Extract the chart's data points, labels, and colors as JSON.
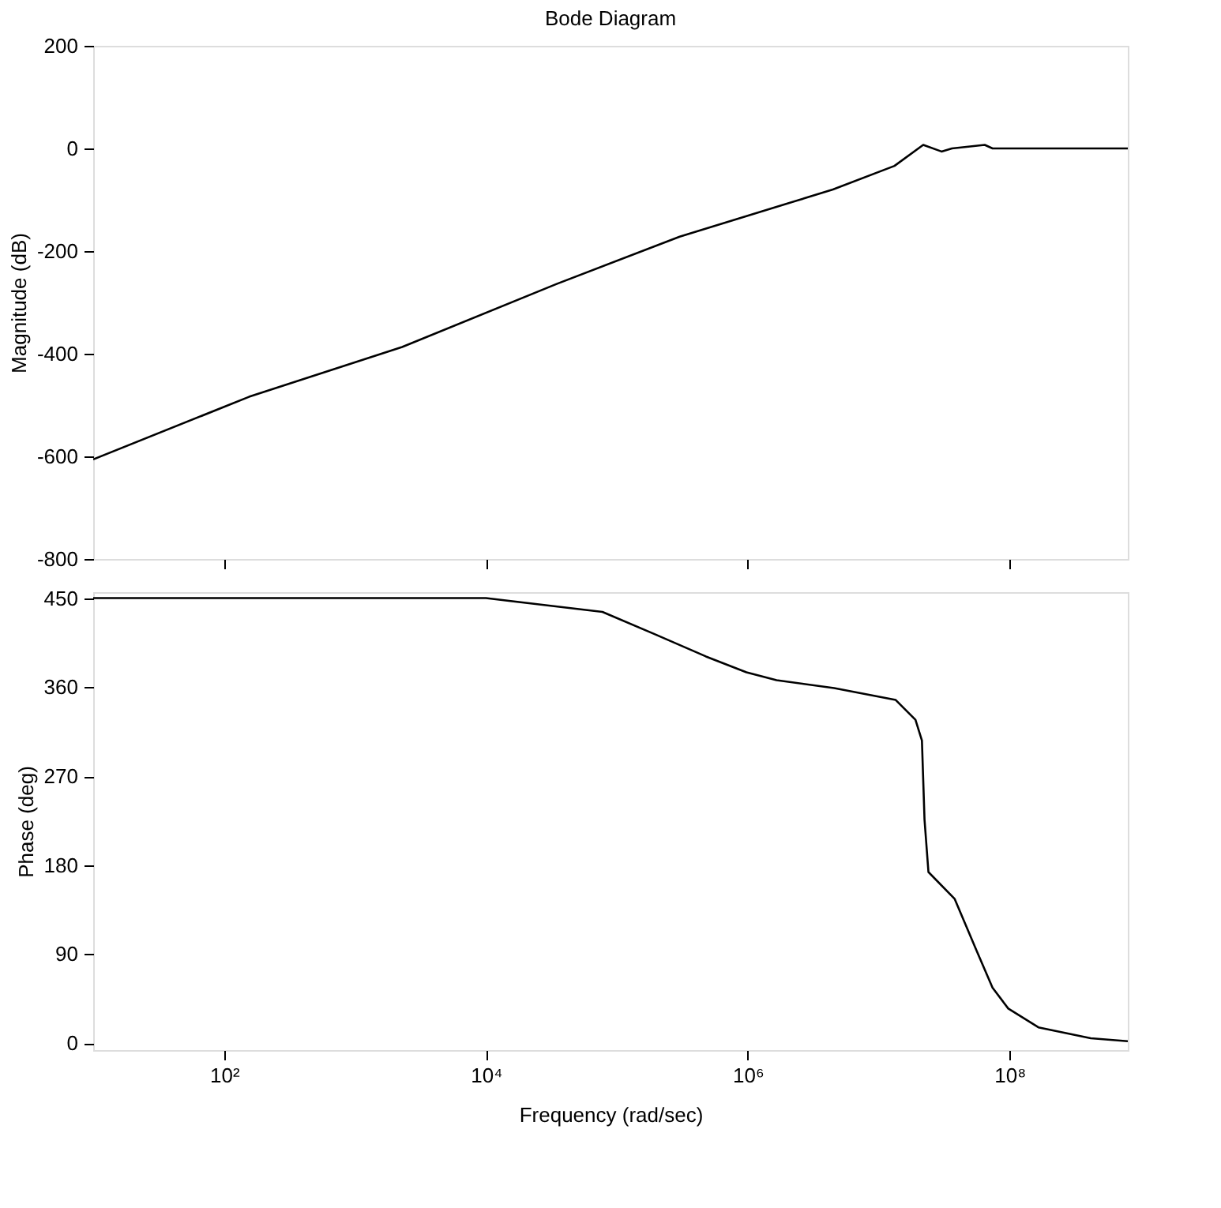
{
  "chart_data": [
    {
      "type": "line",
      "title": "Bode Diagram",
      "ylabel": "Magnitude (dB)",
      "log": "x",
      "grid": false,
      "tick_labels": "y",
      "xlim": [
        10,
        800000000
      ],
      "xticks": [
        {
          "value": 100,
          "label": null
        },
        {
          "value": 10000,
          "label": null
        },
        {
          "value": 1000000,
          "label": null
        },
        {
          "value": 100000000,
          "label": null
        }
      ],
      "ylim": [
        -800,
        200
      ],
      "yticks": [
        -800,
        -600,
        -400,
        -200,
        0,
        200
      ],
      "series": [
        {
          "color": "#000000",
          "x": [
            10,
            155,
            2290,
            34700,
            302000,
            4470000,
            13200000,
            21900000,
            30200000,
            36300000,
            64600000,
            74100000,
            800000000
          ],
          "values": [
            -606,
            -484,
            -387,
            -264,
            -172,
            -80,
            -34,
            7,
            -6,
            0,
            7,
            0,
            0
          ]
        }
      ]
    },
    {
      "type": "line",
      "ylabel": "Phase (deg)",
      "xlabel": "Frequency  (rad/sec)",
      "log": "x",
      "grid": false,
      "xlim": [
        10,
        800000000
      ],
      "xticks": [
        {
          "value": 100,
          "label": "10²"
        },
        {
          "value": 10000,
          "label": "10⁴"
        },
        {
          "value": 1000000,
          "label": "10⁶"
        },
        {
          "value": 100000000,
          "label": "10⁸"
        }
      ],
      "ylim": [
        -7,
        456
      ],
      "yticks": [
        0,
        90,
        180,
        270,
        360,
        450
      ],
      "series": [
        {
          "color": "#000000",
          "x": [
            10,
            10000,
            24000,
            77600,
            191000,
            479000,
            977000,
            1660000,
            4570000,
            13500000,
            19100000,
            21400000,
            22400000,
            24000000,
            38000000,
            56200000,
            74100000,
            97700000,
            166000000,
            417000000,
            800000000
          ],
          "values": [
            450,
            450,
            444,
            436,
            414,
            391,
            375,
            367,
            359,
            347,
            327,
            306,
            226,
            173,
            146,
            93,
            56,
            35,
            16,
            5,
            2
          ]
        }
      ]
    }
  ]
}
